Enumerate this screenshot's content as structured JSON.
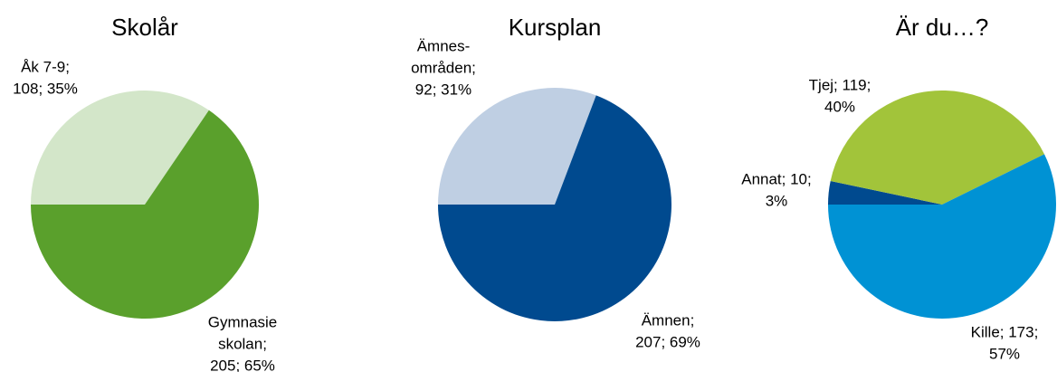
{
  "chart_data": [
    {
      "type": "pie",
      "title": "Skolår",
      "values": [
        108,
        205
      ],
      "value_labels": [
        [
          "Åk 7-9;",
          "108; 35%"
        ],
        [
          "Gymnasie",
          "skolan;",
          "205; 65%"
        ]
      ],
      "colors": [
        "#d3e6c9",
        "#5aa02c"
      ]
    },
    {
      "type": "pie",
      "title": "Kursplan",
      "values": [
        92,
        207
      ],
      "value_labels": [
        [
          "Ämnes-",
          "områden;",
          "92; 31%"
        ],
        [
          "Ämnen;",
          "207; 69%"
        ]
      ],
      "colors": [
        "#bfcfe3",
        "#004a8f"
      ]
    },
    {
      "type": "pie",
      "title": "Är du…?",
      "values": [
        10,
        119,
        173
      ],
      "value_labels": [
        [
          "Annat; 10;",
          "3%"
        ],
        [
          "Tjej; 119;",
          "40%"
        ],
        [
          "Kille; 173;",
          "57%"
        ]
      ],
      "colors": [
        "#004a8f",
        "#a2c43a",
        "#0092d4"
      ]
    }
  ]
}
